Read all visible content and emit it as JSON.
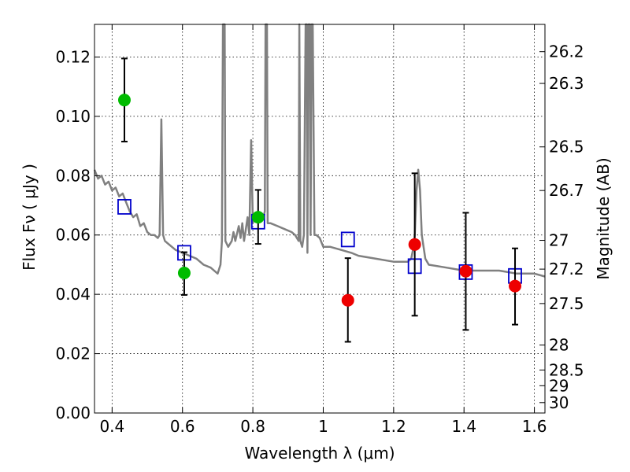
{
  "chart_data": {
    "type": "scatter",
    "title": "",
    "xlabel": "Wavelength  λ (μm)",
    "ylabel": "Flux  Fν  ( μJy )",
    "y2label": "Magnitude (AB)",
    "xlim": [
      0.35,
      1.63
    ],
    "ylim": [
      0.0,
      0.131
    ],
    "grid": true,
    "x_ticks": [
      {
        "value": 0.4,
        "label": "0.4"
      },
      {
        "value": 0.6,
        "label": "0.6"
      },
      {
        "value": 0.8,
        "label": "0.8"
      },
      {
        "value": 1.0,
        "label": "1"
      },
      {
        "value": 1.2,
        "label": "1.2"
      },
      {
        "value": 1.4,
        "label": "1.4"
      },
      {
        "value": 1.6,
        "label": "1.6"
      }
    ],
    "y_ticks": [
      {
        "value": 0.0,
        "label": "0.00"
      },
      {
        "value": 0.02,
        "label": "0.02"
      },
      {
        "value": 0.04,
        "label": "0.04"
      },
      {
        "value": 0.06,
        "label": "0.06"
      },
      {
        "value": 0.08,
        "label": "0.08"
      },
      {
        "value": 0.1,
        "label": "0.10"
      },
      {
        "value": 0.12,
        "label": "0.12"
      }
    ],
    "y2_ticks": [
      {
        "flux": 0.1218,
        "label": "26.2"
      },
      {
        "flux": 0.1111,
        "label": "26.3"
      },
      {
        "flux": 0.0897,
        "label": "26.5"
      },
      {
        "flux": 0.075,
        "label": "26.7"
      },
      {
        "flux": 0.0582,
        "label": "27"
      },
      {
        "flux": 0.0485,
        "label": "27.2"
      },
      {
        "flux": 0.0369,
        "label": "27.5"
      },
      {
        "flux": 0.0229,
        "label": "28"
      },
      {
        "flux": 0.0145,
        "label": "28.5"
      },
      {
        "flux": 0.0092,
        "label": "29"
      },
      {
        "flux": 0.0035,
        "label": "30"
      }
    ],
    "series": [
      {
        "kind": "line",
        "color": "#808080",
        "values": [
          [
            0.35,
            0.082
          ],
          [
            0.36,
            0.079
          ],
          [
            0.37,
            0.08
          ],
          [
            0.38,
            0.077
          ],
          [
            0.39,
            0.078
          ],
          [
            0.4,
            0.075
          ],
          [
            0.41,
            0.076
          ],
          [
            0.42,
            0.073
          ],
          [
            0.43,
            0.074
          ],
          [
            0.44,
            0.071
          ],
          [
            0.45,
            0.068
          ],
          [
            0.46,
            0.066
          ],
          [
            0.47,
            0.067
          ],
          [
            0.48,
            0.063
          ],
          [
            0.49,
            0.064
          ],
          [
            0.5,
            0.061
          ],
          [
            0.51,
            0.06
          ],
          [
            0.52,
            0.06
          ],
          [
            0.53,
            0.059
          ],
          [
            0.535,
            0.06
          ],
          [
            0.54,
            0.099
          ],
          [
            0.545,
            0.06
          ],
          [
            0.55,
            0.058
          ],
          [
            0.56,
            0.057
          ],
          [
            0.58,
            0.055
          ],
          [
            0.6,
            0.054
          ],
          [
            0.62,
            0.053
          ],
          [
            0.64,
            0.052
          ],
          [
            0.66,
            0.05
          ],
          [
            0.68,
            0.049
          ],
          [
            0.7,
            0.047
          ],
          [
            0.708,
            0.05
          ],
          [
            0.712,
            0.058
          ],
          [
            0.715,
            0.131
          ],
          [
            0.72,
            0.131
          ],
          [
            0.722,
            0.058
          ],
          [
            0.73,
            0.056
          ],
          [
            0.74,
            0.058
          ],
          [
            0.745,
            0.061
          ],
          [
            0.75,
            0.058
          ],
          [
            0.76,
            0.063
          ],
          [
            0.765,
            0.059
          ],
          [
            0.77,
            0.064
          ],
          [
            0.775,
            0.058
          ],
          [
            0.78,
            0.062
          ],
          [
            0.785,
            0.066
          ],
          [
            0.79,
            0.06
          ],
          [
            0.795,
            0.092
          ],
          [
            0.8,
            0.064
          ],
          [
            0.805,
            0.066
          ],
          [
            0.81,
            0.065
          ],
          [
            0.815,
            0.067
          ],
          [
            0.82,
            0.066
          ],
          [
            0.825,
            0.067
          ],
          [
            0.83,
            0.066
          ],
          [
            0.834,
            0.068
          ],
          [
            0.836,
            0.131
          ],
          [
            0.84,
            0.131
          ],
          [
            0.842,
            0.064
          ],
          [
            0.85,
            0.064
          ],
          [
            0.87,
            0.063
          ],
          [
            0.89,
            0.062
          ],
          [
            0.91,
            0.061
          ],
          [
            0.92,
            0.06
          ],
          [
            0.93,
            0.058
          ],
          [
            0.932,
            0.131
          ],
          [
            0.935,
            0.058
          ],
          [
            0.94,
            0.056
          ],
          [
            0.945,
            0.06
          ],
          [
            0.95,
            0.131
          ],
          [
            0.953,
            0.131
          ],
          [
            0.955,
            0.054
          ],
          [
            0.958,
            0.131
          ],
          [
            0.962,
            0.131
          ],
          [
            0.964,
            0.06
          ],
          [
            0.967,
            0.131
          ],
          [
            0.97,
            0.131
          ],
          [
            0.975,
            0.06
          ],
          [
            0.98,
            0.06
          ],
          [
            0.99,
            0.059
          ],
          [
            1.0,
            0.056
          ],
          [
            1.02,
            0.056
          ],
          [
            1.05,
            0.055
          ],
          [
            1.08,
            0.054
          ],
          [
            1.1,
            0.053
          ],
          [
            1.15,
            0.052
          ],
          [
            1.2,
            0.051
          ],
          [
            1.24,
            0.051
          ],
          [
            1.25,
            0.052
          ],
          [
            1.255,
            0.055
          ],
          [
            1.26,
            0.06
          ],
          [
            1.265,
            0.075
          ],
          [
            1.27,
            0.082
          ],
          [
            1.275,
            0.075
          ],
          [
            1.28,
            0.06
          ],
          [
            1.29,
            0.052
          ],
          [
            1.3,
            0.05
          ],
          [
            1.35,
            0.049
          ],
          [
            1.4,
            0.048
          ],
          [
            1.45,
            0.048
          ],
          [
            1.5,
            0.048
          ],
          [
            1.55,
            0.047
          ],
          [
            1.6,
            0.047
          ],
          [
            1.63,
            0.046
          ]
        ]
      },
      {
        "kind": "open-square",
        "color": "#0000cc",
        "values": [
          [
            0.435,
            0.0695
          ],
          [
            0.605,
            0.054
          ],
          [
            0.815,
            0.0645
          ],
          [
            1.07,
            0.0585
          ],
          [
            1.26,
            0.0495
          ],
          [
            1.405,
            0.0475
          ],
          [
            1.545,
            0.0462
          ]
        ]
      },
      {
        "kind": "dot",
        "color": "#00bb00",
        "values": [
          {
            "x": 0.435,
            "y": 0.1055,
            "err_low": 0.0915,
            "err_high": 0.1195
          },
          {
            "x": 0.605,
            "y": 0.0472,
            "err_low": 0.0398,
            "err_high": 0.0542
          },
          {
            "x": 0.815,
            "y": 0.066,
            "err_low": 0.057,
            "err_high": 0.0752
          }
        ]
      },
      {
        "kind": "dot",
        "color": "#ee0000",
        "values": [
          {
            "x": 1.07,
            "y": 0.038,
            "err_low": 0.024,
            "err_high": 0.0522
          },
          {
            "x": 1.26,
            "y": 0.0568,
            "err_low": 0.0328,
            "err_high": 0.0808
          },
          {
            "x": 1.405,
            "y": 0.0478,
            "err_low": 0.028,
            "err_high": 0.0675
          },
          {
            "x": 1.545,
            "y": 0.0428,
            "err_low": 0.0298,
            "err_high": 0.0555
          }
        ]
      }
    ]
  }
}
